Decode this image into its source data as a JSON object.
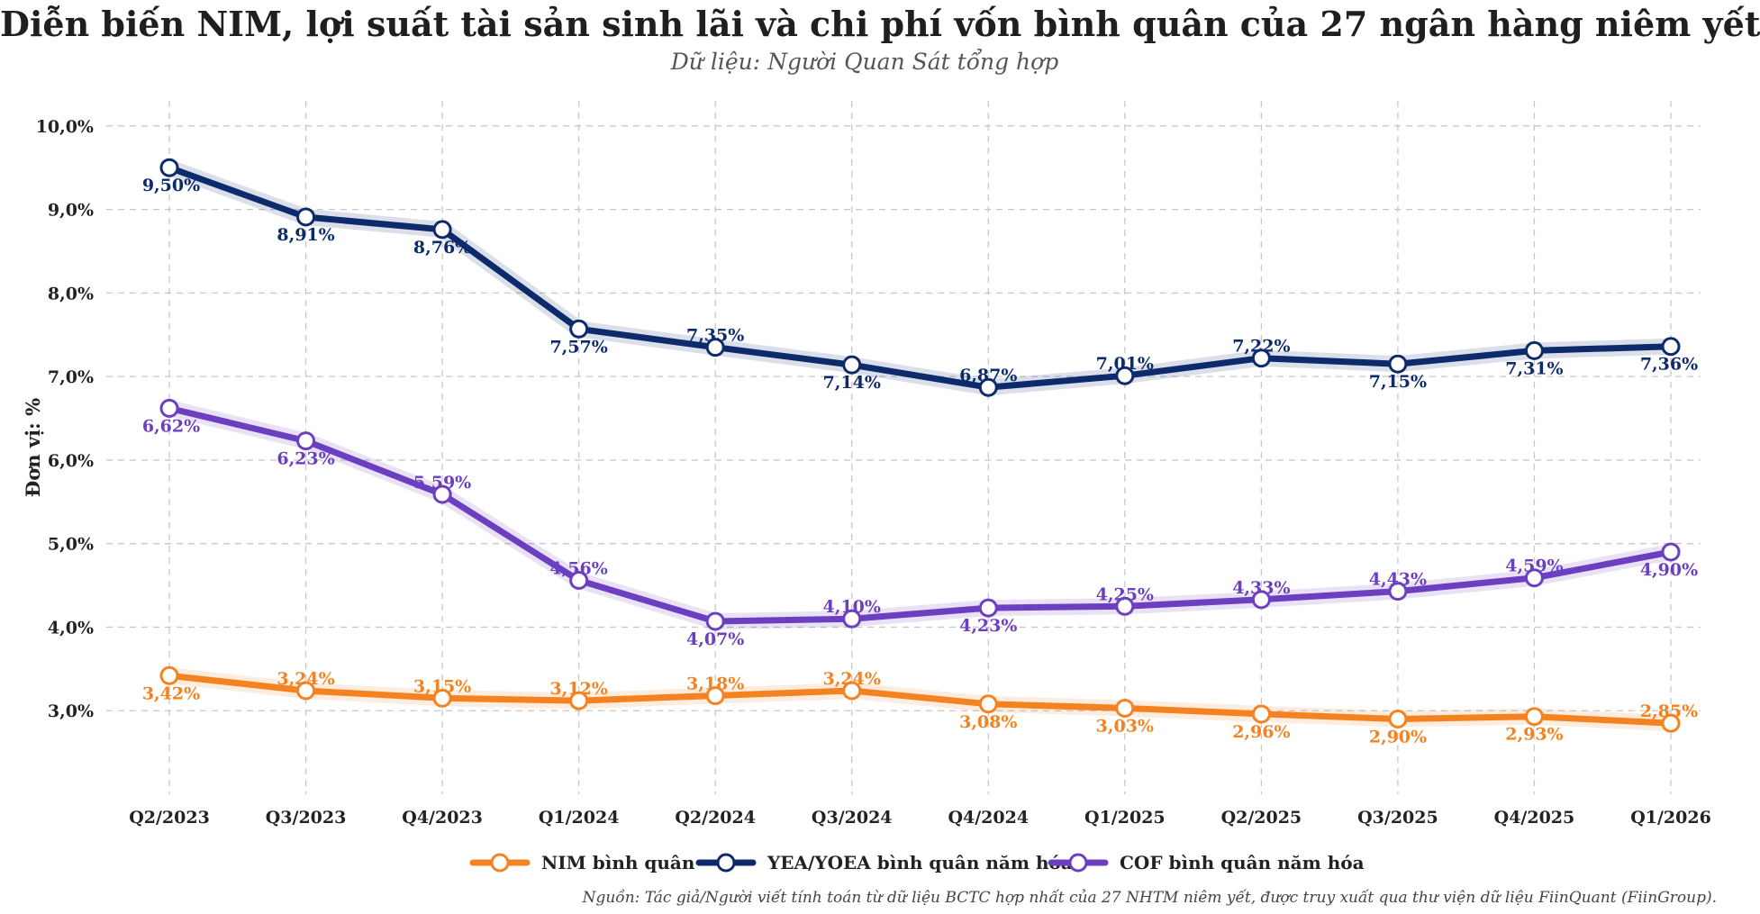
{
  "title": "Diễn biến NIM, lợi suất tài sản sinh lãi và chi phí vốn bình quân của 27 ngân hàng niêm yết",
  "subtitle": "Dữ liệu: Người Quan Sát tổng hợp",
  "source": "Nguồn: Tác giả/Người viết tính toán từ dữ liệu BCTC hợp nhất của 27 NHTM niêm yết, được truy xuất qua thư viện dữ liệu FiinQuant (FiinGroup).",
  "chart_data": {
    "type": "line",
    "ylabel": "Đơn vị: %",
    "ylim": [
      2.0,
      10.3
    ],
    "yticks": [
      3.0,
      4.0,
      5.0,
      6.0,
      7.0,
      8.0,
      9.0,
      10.0
    ],
    "ytick_labels": [
      "3,0%",
      "4,0%",
      "5,0%",
      "6,0%",
      "7,0%",
      "8,0%",
      "9,0%",
      "10,0%"
    ],
    "grid": true,
    "legend_position": "bottom-center",
    "categories": [
      "Q2/2023",
      "Q3/2023",
      "Q4/2023",
      "Q1/2024",
      "Q2/2024",
      "Q3/2024",
      "Q4/2024",
      "Q1/2025",
      "Q2/2025",
      "Q3/2025",
      "Q4/2025",
      "Q1/2026"
    ],
    "series": [
      {
        "name": "NIM bình quân",
        "color": "#f58220",
        "values": [
          3.42,
          3.24,
          3.15,
          3.12,
          3.18,
          3.24,
          3.08,
          3.03,
          2.96,
          2.9,
          2.93,
          2.85
        ],
        "labels": [
          "3,42%",
          "3,24%",
          "3,15%",
          "3,12%",
          "3,18%",
          "3,24%",
          "3,08%",
          "3,03%",
          "2,96%",
          "2,90%",
          "2,93%",
          "2,85%"
        ]
      },
      {
        "name": "YEA/YOEA bình quân năm hóa",
        "color": "#0d2a6b",
        "values": [
          9.5,
          8.91,
          8.76,
          7.57,
          7.35,
          7.14,
          6.87,
          7.01,
          7.22,
          7.15,
          7.31,
          7.36
        ],
        "labels": [
          "9,50%",
          "8,91%",
          "8,76%",
          "7,57%",
          "7,35%",
          "7,14%",
          "6,87%",
          "7,01%",
          "7,22%",
          "7,15%",
          "7,31%",
          "7,36%"
        ]
      },
      {
        "name": "COF bình quân năm hóa",
        "color": "#6c3fc0",
        "values": [
          6.62,
          6.23,
          5.59,
          4.56,
          4.07,
          4.1,
          4.23,
          4.25,
          4.33,
          4.43,
          4.59,
          4.9
        ],
        "labels": [
          "6,62%",
          "6,23%",
          "5,59%",
          "4,56%",
          "4,07%",
          "4,10%",
          "4,23%",
          "4,25%",
          "4,33%",
          "4,43%",
          "4,59%",
          "4,90%"
        ]
      }
    ]
  }
}
